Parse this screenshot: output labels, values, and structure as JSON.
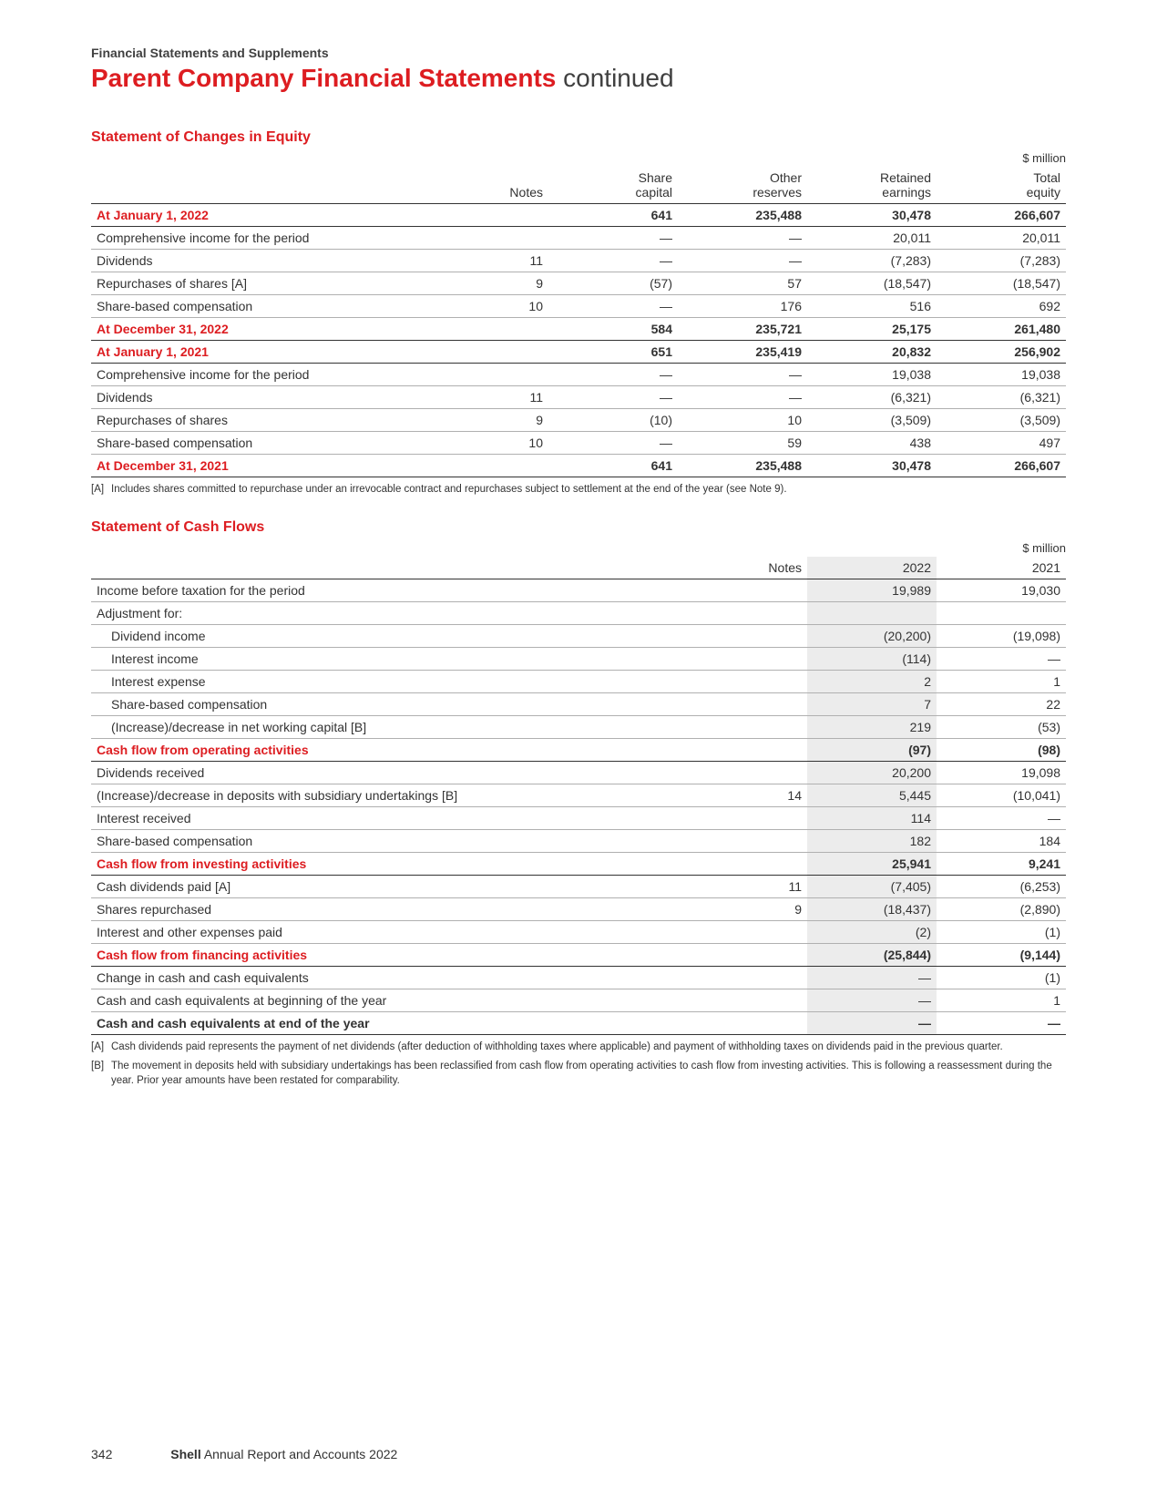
{
  "breadcrumb": "Financial Statements and Supplements",
  "title_main": "Parent Company Financial Statements",
  "title_cont": " continued",
  "unit_label": "$ million",
  "equity": {
    "section_title": "Statement of Changes in Equity",
    "headers": [
      "",
      "Notes",
      "Share capital",
      "Other reserves",
      "Retained earnings",
      "Total equity"
    ],
    "rows": [
      {
        "label": "At January 1, 2022",
        "cells": [
          "",
          "641",
          "235,488",
          "30,478",
          "266,607"
        ],
        "red": true
      },
      {
        "label": "Comprehensive income for the period",
        "cells": [
          "",
          "—",
          "—",
          "20,011",
          "20,011"
        ]
      },
      {
        "label": "Dividends",
        "cells": [
          "11",
          "—",
          "—",
          "(7,283)",
          "(7,283)"
        ]
      },
      {
        "label": "Repurchases of shares [A]",
        "cells": [
          "9",
          "(57)",
          "57",
          "(18,547)",
          "(18,547)"
        ]
      },
      {
        "label": "Share-based compensation",
        "cells": [
          "10",
          "—",
          "176",
          "516",
          "692"
        ]
      },
      {
        "label": "At December 31, 2022",
        "cells": [
          "",
          "584",
          "235,721",
          "25,175",
          "261,480"
        ],
        "red": true
      },
      {
        "label": "At January 1, 2021",
        "cells": [
          "",
          "651",
          "235,419",
          "20,832",
          "256,902"
        ],
        "red": true
      },
      {
        "label": "Comprehensive income for the period",
        "cells": [
          "",
          "—",
          "—",
          "19,038",
          "19,038"
        ]
      },
      {
        "label": "Dividends",
        "cells": [
          "11",
          "—",
          "—",
          "(6,321)",
          "(6,321)"
        ]
      },
      {
        "label": "Repurchases of shares",
        "cells": [
          "9",
          "(10)",
          "10",
          "(3,509)",
          "(3,509)"
        ]
      },
      {
        "label": "Share-based compensation",
        "cells": [
          "10",
          "—",
          "59",
          "438",
          "497"
        ]
      },
      {
        "label": "At December 31, 2021",
        "cells": [
          "",
          "641",
          "235,488",
          "30,478",
          "266,607"
        ],
        "red": true
      }
    ],
    "footnotes": [
      {
        "tag": "[A]",
        "text": "Includes shares committed to repurchase under an irrevocable contract and repurchases subject to settlement at the end of the year (see Note 9)."
      }
    ]
  },
  "cashflow": {
    "section_title": "Statement of Cash Flows",
    "headers": [
      "",
      "Notes",
      "2022",
      "2021"
    ],
    "rows": [
      {
        "label": "Income before taxation for the period",
        "cells": [
          "",
          "19,989",
          "19,030"
        ]
      },
      {
        "label": "Adjustment for:",
        "cells": [
          "",
          "",
          ""
        ],
        "noborder": true
      },
      {
        "label": "Dividend income",
        "cells": [
          "",
          "(20,200)",
          "(19,098)"
        ],
        "indent": true
      },
      {
        "label": "Interest income",
        "cells": [
          "",
          "(114)",
          "—"
        ],
        "indent": true
      },
      {
        "label": "Interest expense",
        "cells": [
          "",
          "2",
          "1"
        ],
        "indent": true
      },
      {
        "label": "Share-based compensation",
        "cells": [
          "",
          "7",
          "22"
        ],
        "indent": true
      },
      {
        "label": "(Increase)/decrease in net working capital [B]",
        "cells": [
          "",
          "219",
          "(53)"
        ],
        "indent": true
      },
      {
        "label": "Cash flow from operating activities",
        "cells": [
          "",
          "(97)",
          "(98)"
        ],
        "red": true
      },
      {
        "label": "Dividends received",
        "cells": [
          "",
          "20,200",
          "19,098"
        ]
      },
      {
        "label": "(Increase)/decrease in deposits with subsidiary undertakings [B]",
        "cells": [
          "14",
          "5,445",
          "(10,041)"
        ]
      },
      {
        "label": "Interest received",
        "cells": [
          "",
          "114",
          "—"
        ]
      },
      {
        "label": "Share-based compensation",
        "cells": [
          "",
          "182",
          "184"
        ]
      },
      {
        "label": "Cash flow from investing activities",
        "cells": [
          "",
          "25,941",
          "9,241"
        ],
        "red": true
      },
      {
        "label": "Cash dividends paid [A]",
        "cells": [
          "11",
          "(7,405)",
          "(6,253)"
        ]
      },
      {
        "label": "Shares repurchased",
        "cells": [
          "9",
          "(18,437)",
          "(2,890)"
        ]
      },
      {
        "label": "Interest and other expenses paid",
        "cells": [
          "",
          "(2)",
          "(1)"
        ]
      },
      {
        "label": "Cash flow from financing activities",
        "cells": [
          "",
          "(25,844)",
          "(9,144)"
        ],
        "red": true
      },
      {
        "label": "Change in cash and cash equivalents",
        "cells": [
          "",
          "—",
          "(1)"
        ]
      },
      {
        "label": "Cash and cash equivalents at beginning of the year",
        "cells": [
          "",
          "—",
          "1"
        ]
      },
      {
        "label": "Cash and cash equivalents at end of the year",
        "cells": [
          "",
          "—",
          "—"
        ],
        "bold": true
      }
    ],
    "footnotes": [
      {
        "tag": "[A]",
        "text": "Cash dividends paid represents the payment of net dividends (after deduction of withholding taxes where applicable) and payment of withholding taxes on dividends paid in the previous quarter."
      },
      {
        "tag": "[B]",
        "text": "The movement in deposits held with subsidiary undertakings has been reclassified from cash flow from operating activities to cash flow from investing activities. This is following a reassessment during the year. Prior year amounts have been restated for comparability."
      }
    ]
  },
  "footer": {
    "page_number": "342",
    "brand": "Shell",
    "doc": " Annual Report and Accounts 2022"
  },
  "colors": {
    "accent_red": "#dd1d21",
    "text": "#333333",
    "shade_bg": "#ececec",
    "rule": "#b0b0b0",
    "rule_strong": "#333333"
  }
}
